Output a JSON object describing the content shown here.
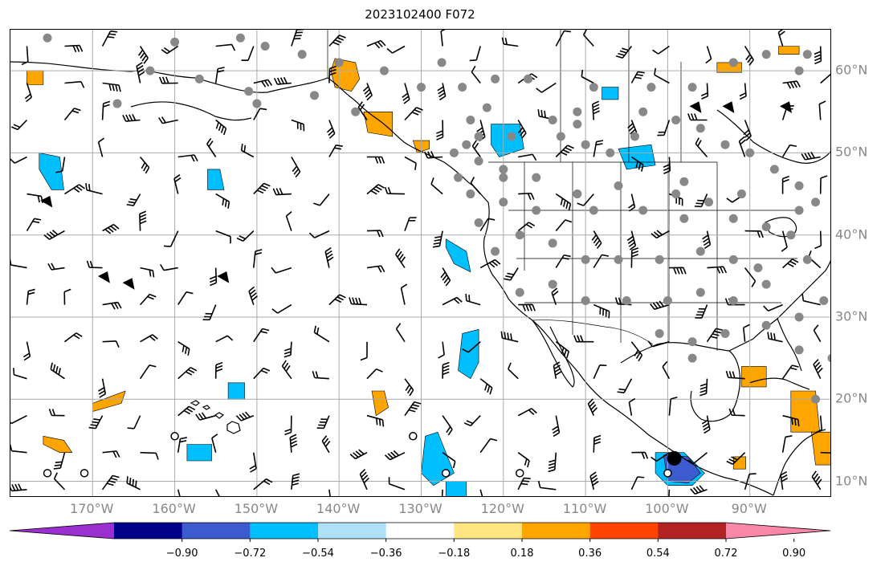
{
  "title": "2023102400 F072",
  "map": {
    "lon_range": [
      -180,
      -80
    ],
    "lat_range": [
      8,
      65
    ],
    "lon_gridlines": [
      -170,
      -160,
      -150,
      -140,
      -130,
      -120,
      -110,
      -100,
      -90
    ],
    "lat_gridlines": [
      10,
      20,
      30,
      40,
      50,
      60
    ],
    "lon_labels": [
      "170°W",
      "160°W",
      "150°W",
      "140°W",
      "130°W",
      "120°W",
      "110°W",
      "100°W",
      "90°W"
    ],
    "lat_labels": [
      "10°N",
      "20°N",
      "30°N",
      "40°N",
      "50°N",
      "60°N"
    ],
    "gridline_color": "#aaaaaa",
    "label_color": "#888888"
  },
  "colorbar": {
    "colors": [
      "#9b30d0",
      "#00008b",
      "#3b5bcf",
      "#00bfff",
      "#aee0f7",
      "#ffffff",
      "#ffe680",
      "#ffa500",
      "#ff4500",
      "#b22222",
      "#f887a8"
    ],
    "ticks": [
      "−0.90",
      "−0.72",
      "−0.54",
      "−0.36",
      "−0.18",
      "0.18",
      "0.36",
      "0.54",
      "0.72",
      "0.90"
    ]
  },
  "legend_colors": {
    "positive_fill": "#ffa500",
    "negative_fill": "#00bfff",
    "strong_negative_fill": "#3b5bcf",
    "station_marker": "#888888"
  },
  "features": {
    "positive_regions": [
      {
        "name": "gulf-of-alaska",
        "pts": [
          [
            -140.5,
            61.5
          ],
          [
            -138,
            61
          ],
          [
            -137.5,
            59
          ],
          [
            -138.5,
            57.5
          ],
          [
            -140.5,
            58
          ],
          [
            -141,
            60
          ]
        ]
      },
      {
        "name": "se-alaska",
        "pts": [
          [
            -137,
            55
          ],
          [
            -133.5,
            55
          ],
          [
            -133.5,
            52
          ],
          [
            -136.5,
            52.5
          ]
        ]
      },
      {
        "name": "bc-coast",
        "pts": [
          [
            -131,
            51.5
          ],
          [
            -129,
            51.5
          ],
          [
            -129,
            50.5
          ],
          [
            -130.5,
            50
          ]
        ]
      },
      {
        "name": "aleutian-west",
        "pts": [
          [
            -178,
            60
          ],
          [
            -176,
            60
          ],
          [
            -176,
            58.3
          ],
          [
            -178,
            58.3
          ]
        ]
      },
      {
        "name": "hudson",
        "pts": [
          [
            -86.5,
            63
          ],
          [
            -84,
            63
          ],
          [
            -84,
            62
          ],
          [
            -86.5,
            62
          ]
        ]
      },
      {
        "name": "nw-canada",
        "pts": [
          [
            -94,
            61
          ],
          [
            -91,
            61
          ],
          [
            -91,
            59.8
          ],
          [
            -94,
            59.8
          ]
        ]
      },
      {
        "name": "hawaii-se",
        "pts": [
          [
            -170,
            19.5
          ],
          [
            -166,
            21
          ],
          [
            -166.5,
            19.5
          ],
          [
            -170,
            18.5
          ]
        ]
      },
      {
        "name": "hawaii-sw",
        "pts": [
          [
            -176,
            15.5
          ],
          [
            -173.5,
            15
          ],
          [
            -172.5,
            13.5
          ],
          [
            -174,
            13.5
          ],
          [
            -176,
            14.5
          ]
        ]
      },
      {
        "name": "mid-pacific",
        "pts": [
          [
            -136,
            21
          ],
          [
            -134.5,
            21
          ],
          [
            -134,
            19
          ],
          [
            -135.5,
            18
          ]
        ]
      },
      {
        "name": "caribbean",
        "pts": [
          [
            -85,
            21
          ],
          [
            -82,
            21
          ],
          [
            -81.5,
            16
          ],
          [
            -85,
            16
          ]
        ]
      },
      {
        "name": "cuba-east",
        "pts": [
          [
            -91,
            24
          ],
          [
            -88,
            24
          ],
          [
            -88,
            21.5
          ],
          [
            -91,
            21.5
          ]
        ]
      },
      {
        "name": "honduras",
        "pts": [
          [
            -82.5,
            16
          ],
          [
            -80,
            16
          ],
          [
            -79.5,
            12
          ],
          [
            -82,
            12
          ]
        ]
      },
      {
        "name": "gulf-mexico",
        "pts": [
          [
            -92,
            13
          ],
          [
            -90.5,
            13
          ],
          [
            -90.5,
            11.5
          ],
          [
            -92,
            11.5
          ]
        ]
      }
    ],
    "negative_regions": [
      {
        "name": "pacific-northwest",
        "pts": [
          [
            -121.5,
            53.5
          ],
          [
            -118,
            53.5
          ],
          [
            -117.5,
            50.5
          ],
          [
            -120.5,
            49.5
          ],
          [
            -121.5,
            51
          ]
        ]
      },
      {
        "name": "north-pacific",
        "pts": [
          [
            -176.5,
            50
          ],
          [
            -174,
            49.5
          ],
          [
            -173.5,
            45.5
          ],
          [
            -175,
            45.5
          ],
          [
            -176.5,
            48
          ]
        ]
      },
      {
        "name": "gulf-of-alaska-south",
        "pts": [
          [
            -156,
            48
          ],
          [
            -154.5,
            48
          ],
          [
            -154,
            45.5
          ],
          [
            -156,
            45.5
          ]
        ]
      },
      {
        "name": "california-off",
        "pts": [
          [
            -127,
            39.5
          ],
          [
            -124.5,
            38
          ],
          [
            -124,
            35.5
          ],
          [
            -126,
            36.5
          ],
          [
            -127,
            38.5
          ]
        ]
      },
      {
        "name": "baja-off",
        "pts": [
          [
            -125,
            28
          ],
          [
            -123,
            28.5
          ],
          [
            -123,
            24.5
          ],
          [
            -124,
            22.5
          ],
          [
            -125.5,
            23.5
          ]
        ]
      },
      {
        "name": "south-pacific",
        "pts": [
          [
            -129.5,
            15.5
          ],
          [
            -128,
            16
          ],
          [
            -126,
            11
          ],
          [
            -128.5,
            9.5
          ],
          [
            -130,
            11
          ]
        ]
      },
      {
        "name": "mexico-low",
        "pts": [
          [
            -101.5,
            13.5
          ],
          [
            -98,
            13.5
          ],
          [
            -95.5,
            11
          ],
          [
            -97,
            9.5
          ],
          [
            -100,
            9.5
          ],
          [
            -101.5,
            11
          ]
        ]
      },
      {
        "name": "hawaii-north",
        "pts": [
          [
            -153.5,
            22
          ],
          [
            -151.5,
            22
          ],
          [
            -151.5,
            20
          ],
          [
            -153.5,
            20
          ]
        ]
      },
      {
        "name": "hawaii-island",
        "pts": [
          [
            -158.5,
            14.5
          ],
          [
            -155.5,
            14.5
          ],
          [
            -155.5,
            12.5
          ],
          [
            -158.5,
            12.5
          ]
        ]
      },
      {
        "name": "equatorial",
        "pts": [
          [
            -127,
            10
          ],
          [
            -124.5,
            10
          ],
          [
            -124.5,
            8
          ],
          [
            -127,
            8
          ]
        ]
      },
      {
        "name": "midwest",
        "pts": [
          [
            -106,
            50.5
          ],
          [
            -102,
            51
          ],
          [
            -101.5,
            48.5
          ],
          [
            -105,
            48
          ]
        ]
      },
      {
        "name": "canada-small",
        "pts": [
          [
            -108,
            58
          ],
          [
            -106,
            58
          ],
          [
            -106,
            56.5
          ],
          [
            -108,
            56.5
          ]
        ]
      }
    ],
    "strong_negative_regions": [
      {
        "name": "tropical-cyclone-core",
        "pts": [
          [
            -100.5,
            13.2
          ],
          [
            -97.5,
            13
          ],
          [
            -96,
            11
          ],
          [
            -97.5,
            9.8
          ],
          [
            -100,
            10
          ]
        ]
      }
    ],
    "cyclone_center": {
      "lon": -99.2,
      "lat": 12.8
    },
    "stations": [
      [
        -175.5,
        64
      ],
      [
        -152,
        64
      ],
      [
        -149,
        63
      ],
      [
        -144.5,
        62
      ],
      [
        -140,
        61
      ],
      [
        -134.5,
        60
      ],
      [
        -127.5,
        61
      ],
      [
        -130,
        58
      ],
      [
        -125,
        58
      ],
      [
        -121,
        59
      ],
      [
        -117,
        59
      ],
      [
        -109,
        58
      ],
      [
        -102,
        58
      ],
      [
        -97,
        58
      ],
      [
        -92,
        61
      ],
      [
        -88,
        62
      ],
      [
        -83,
        62
      ],
      [
        -84,
        60
      ],
      [
        -163,
        60
      ],
      [
        -167,
        56
      ],
      [
        -150,
        56
      ],
      [
        -138,
        55
      ],
      [
        -124,
        54
      ],
      [
        -123,
        52
      ],
      [
        -119,
        52
      ],
      [
        -113,
        52
      ],
      [
        -110,
        51
      ],
      [
        -104,
        52
      ],
      [
        -96,
        53
      ],
      [
        -93,
        51
      ],
      [
        -90,
        50
      ],
      [
        -87,
        48
      ],
      [
        -84,
        46
      ],
      [
        -82,
        44
      ],
      [
        -114,
        54
      ],
      [
        -111,
        55
      ],
      [
        -103,
        55
      ],
      [
        -99,
        54
      ],
      [
        -120,
        47
      ],
      [
        -116,
        47
      ],
      [
        -111,
        45
      ],
      [
        -106,
        46
      ],
      [
        -99,
        45
      ],
      [
        -95,
        44
      ],
      [
        -91,
        45
      ],
      [
        -120,
        44
      ],
      [
        -116,
        43
      ],
      [
        -109,
        43
      ],
      [
        -103,
        43
      ],
      [
        -98,
        42
      ],
      [
        -92,
        42
      ],
      [
        -88,
        41
      ],
      [
        -84,
        43
      ],
      [
        -121,
        38
      ],
      [
        -118,
        40
      ],
      [
        -114,
        39
      ],
      [
        -110,
        37
      ],
      [
        -106,
        37
      ],
      [
        -101,
        37
      ],
      [
        -96,
        38
      ],
      [
        -92,
        37
      ],
      [
        -89,
        36
      ],
      [
        -85,
        40
      ],
      [
        -118,
        33
      ],
      [
        -114,
        34
      ],
      [
        -110,
        32
      ],
      [
        -105,
        32
      ],
      [
        -100,
        32
      ],
      [
        -96,
        33
      ],
      [
        -92,
        32
      ],
      [
        -88,
        34
      ],
      [
        -83,
        37
      ],
      [
        -101,
        28
      ],
      [
        -97,
        27
      ],
      [
        -93,
        28
      ],
      [
        -88,
        29
      ],
      [
        -84,
        30
      ],
      [
        -81,
        32
      ],
      [
        -97,
        25
      ],
      [
        -84,
        26
      ],
      [
        -80,
        25
      ],
      [
        -82,
        20
      ],
      [
        -124.5,
        51
      ],
      [
        -123,
        49
      ],
      [
        -120,
        48
      ],
      [
        -126,
        50
      ],
      [
        -125.5,
        47
      ],
      [
        -124,
        45
      ],
      [
        -123,
        41.5
      ],
      [
        -160,
        63.5
      ],
      [
        -157,
        59
      ],
      [
        -151,
        57.5
      ],
      [
        -143,
        57
      ],
      [
        -122,
        55.5
      ],
      [
        -111,
        53.5
      ],
      [
        -107,
        50
      ],
      [
        -98,
        46.5
      ]
    ],
    "calm_circles": [
      [
        -175.5,
        11
      ],
      [
        -171,
        11
      ],
      [
        -160,
        15.5
      ],
      [
        -131,
        15.5
      ],
      [
        -127,
        11
      ],
      [
        -118,
        11
      ],
      [
        -100,
        11
      ]
    ],
    "flag_barbs": [
      [
        -96,
        55
      ],
      [
        -92,
        55
      ],
      [
        -85,
        55
      ],
      [
        -175,
        43.5
      ],
      [
        -153.5,
        34.3
      ],
      [
        -168,
        34.3
      ],
      [
        -165,
        33.5
      ]
    ]
  }
}
